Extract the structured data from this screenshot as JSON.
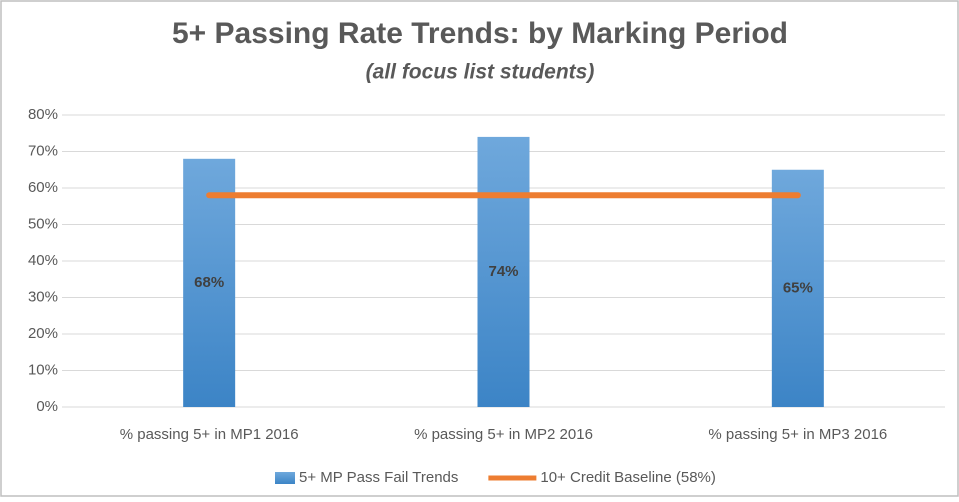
{
  "chart_data": {
    "type": "bar",
    "title": "5+ Passing Rate Trends: by Marking Period",
    "subtitle": "(all focus list students)",
    "categories": [
      "% passing 5+ in MP1 2016",
      "% passing 5+ in MP2 2016",
      "% passing 5+ in MP3 2016"
    ],
    "series": [
      {
        "name": "5+ MP Pass Fail Trends",
        "color": "#5b9bd5",
        "values": [
          68,
          74,
          65
        ],
        "value_labels": [
          "68%",
          "74%",
          "65%"
        ]
      },
      {
        "name": "10+ Credit Baseline (58%)",
        "color": "#ed7d31",
        "type": "line",
        "values": [
          58,
          58,
          58
        ]
      }
    ],
    "ylim": [
      0,
      80
    ],
    "yticks": [
      {
        "value": 0,
        "label": "0%"
      },
      {
        "value": 10,
        "label": "10%"
      },
      {
        "value": 20,
        "label": "20%"
      },
      {
        "value": 30,
        "label": "30%"
      },
      {
        "value": 40,
        "label": "40%"
      },
      {
        "value": 50,
        "label": "50%"
      },
      {
        "value": 60,
        "label": "60%"
      },
      {
        "value": 70,
        "label": "70%"
      },
      {
        "value": 80,
        "label": "80%"
      }
    ],
    "grid": true,
    "legend": "bottom"
  }
}
